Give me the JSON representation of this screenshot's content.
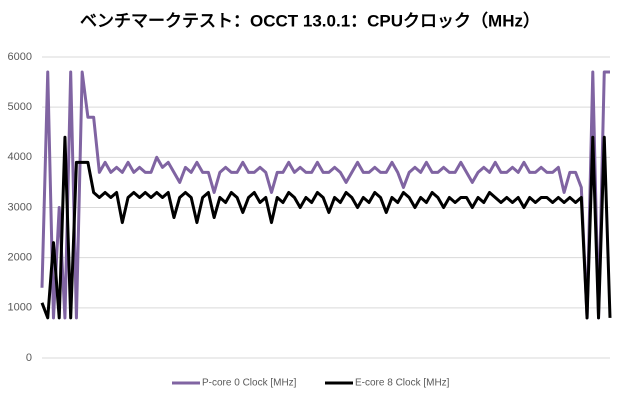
{
  "chart_data": {
    "type": "line",
    "title": "ベンチマークテスト：OCCT 13.0.1：CPUクロック（MHz）",
    "ylim": [
      0,
      6000
    ],
    "yticks": [
      0,
      1000,
      2000,
      3000,
      4000,
      5000,
      6000
    ],
    "grid": true,
    "legend": "bottom",
    "series": [
      {
        "name": "P-core 0 Clock [MHz]",
        "color": "#8064a2",
        "values": [
          1400,
          5700,
          800,
          3000,
          800,
          5700,
          800,
          5700,
          4800,
          4800,
          3700,
          3900,
          3700,
          3800,
          3700,
          3900,
          3700,
          3800,
          3700,
          3700,
          4000,
          3800,
          3900,
          3700,
          3500,
          3800,
          3700,
          3900,
          3700,
          3700,
          3300,
          3700,
          3800,
          3700,
          3700,
          3900,
          3700,
          3700,
          3800,
          3700,
          3300,
          3700,
          3700,
          3900,
          3700,
          3800,
          3700,
          3700,
          3900,
          3700,
          3700,
          3800,
          3700,
          3500,
          3700,
          3900,
          3700,
          3700,
          3800,
          3700,
          3700,
          3900,
          3700,
          3400,
          3700,
          3800,
          3700,
          3900,
          3700,
          3700,
          3800,
          3700,
          3700,
          3900,
          3700,
          3500,
          3700,
          3800,
          3700,
          3900,
          3700,
          3700,
          3800,
          3700,
          3900,
          3700,
          3700,
          3800,
          3700,
          3700,
          3800,
          3300,
          3700,
          3700,
          3400,
          800,
          5700,
          800,
          5700,
          5700
        ]
      },
      {
        "name": "E-core 8 Clock [MHz]",
        "color": "#000000",
        "values": [
          1100,
          800,
          2300,
          800,
          4400,
          800,
          3900,
          3900,
          3900,
          3300,
          3200,
          3300,
          3200,
          3300,
          2700,
          3200,
          3300,
          3200,
          3300,
          3200,
          3300,
          3200,
          3300,
          2800,
          3200,
          3300,
          3200,
          2700,
          3200,
          3300,
          2800,
          3200,
          3100,
          3300,
          3200,
          2900,
          3200,
          3300,
          3100,
          3200,
          2700,
          3200,
          3100,
          3300,
          3200,
          3000,
          3200,
          3100,
          3300,
          3200,
          2900,
          3200,
          3100,
          3300,
          3200,
          3000,
          3200,
          3100,
          3300,
          3200,
          2900,
          3200,
          3100,
          3300,
          3200,
          3000,
          3200,
          3100,
          3300,
          3200,
          3000,
          3200,
          3100,
          3200,
          3200,
          3000,
          3200,
          3100,
          3300,
          3200,
          3100,
          3200,
          3100,
          3200,
          3000,
          3200,
          3100,
          3200,
          3200,
          3100,
          3200,
          3100,
          3200,
          3100,
          3200,
          800,
          4400,
          800,
          4400,
          800
        ]
      }
    ]
  }
}
